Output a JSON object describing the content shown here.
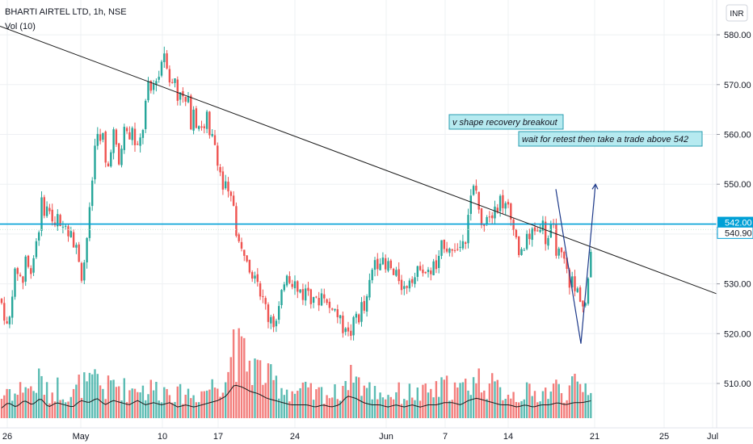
{
  "header": {
    "symbol_line": "BHARTI AIRTEL LTD, 1h, NSE",
    "volume_label": "Vol (10)",
    "currency": "INR"
  },
  "annotations": {
    "note1": "v shape recovery breakout",
    "note2": "wait for retest then take a trade above 542"
  },
  "chart_data": {
    "type": "candlestick",
    "symbol": "BHARTI AIRTEL LTD",
    "interval": "1h",
    "exchange": "NSE",
    "y_axis": {
      "ticks": [
        510,
        520,
        530,
        540,
        550,
        560,
        570,
        580
      ],
      "tick_labels": [
        "510.00",
        "520.00",
        "530.00",
        "540.00",
        "550.00",
        "560.00",
        "570.00",
        "580.00"
      ],
      "range": [
        502,
        586
      ]
    },
    "x_axis": {
      "tick_labels": [
        "26",
        "May",
        "10",
        "17",
        "24",
        "Jun",
        "7",
        "14",
        "21",
        "25",
        "Jul"
      ]
    },
    "price_labels": [
      {
        "value": 542.0,
        "label": "542.00"
      },
      {
        "value": 540.9,
        "label": "540.90"
      }
    ],
    "horizontal_level": 542,
    "trendline": {
      "start": {
        "x": "Apr 26",
        "y": 584
      },
      "end": {
        "x": "Jun 30",
        "y": 528
      }
    },
    "price_path": [
      [
        0,
        527
      ],
      [
        4,
        525
      ],
      [
        8,
        521
      ],
      [
        12,
        523
      ],
      [
        16,
        530
      ],
      [
        20,
        533
      ],
      [
        24,
        532
      ],
      [
        28,
        530
      ],
      [
        32,
        536
      ],
      [
        36,
        532
      ],
      [
        40,
        534
      ],
      [
        44,
        538
      ],
      [
        48,
        541
      ],
      [
        52,
        547
      ],
      [
        56,
        544
      ],
      [
        60,
        546
      ],
      [
        64,
        543
      ],
      [
        68,
        541
      ],
      [
        72,
        544
      ],
      [
        76,
        539
      ],
      [
        80,
        544
      ],
      [
        84,
        540
      ],
      [
        88,
        542
      ],
      [
        92,
        536
      ],
      [
        96,
        538
      ],
      [
        100,
        531
      ],
      [
        104,
        534
      ],
      [
        108,
        540
      ],
      [
        112,
        546
      ],
      [
        116,
        555
      ],
      [
        120,
        562
      ],
      [
        124,
        558
      ],
      [
        128,
        560
      ],
      [
        132,
        551
      ],
      [
        136,
        556
      ],
      [
        140,
        561
      ],
      [
        144,
        557
      ],
      [
        148,
        553
      ],
      [
        152,
        560
      ],
      [
        156,
        562
      ],
      [
        160,
        558
      ],
      [
        164,
        562
      ],
      [
        168,
        556
      ],
      [
        172,
        558
      ],
      [
        176,
        560
      ],
      [
        180,
        566
      ],
      [
        184,
        570
      ],
      [
        188,
        568
      ],
      [
        192,
        572
      ],
      [
        196,
        571
      ],
      [
        200,
        575
      ],
      [
        204,
        577
      ],
      [
        208,
        573
      ],
      [
        212,
        569
      ],
      [
        216,
        572
      ],
      [
        220,
        567
      ],
      [
        224,
        570
      ],
      [
        228,
        565
      ],
      [
        232,
        568
      ],
      [
        236,
        562
      ],
      [
        240,
        566
      ],
      [
        244,
        561
      ],
      [
        248,
        563
      ],
      [
        252,
        560
      ],
      [
        256,
        564
      ],
      [
        260,
        558
      ],
      [
        264,
        560
      ],
      [
        268,
        556
      ],
      [
        272,
        553
      ],
      [
        276,
        549
      ],
      [
        280,
        550
      ],
      [
        284,
        546
      ],
      [
        288,
        548
      ],
      [
        292,
        541
      ],
      [
        296,
        538
      ],
      [
        300,
        536
      ],
      [
        304,
        537
      ],
      [
        308,
        534
      ],
      [
        312,
        532
      ],
      [
        316,
        533
      ],
      [
        320,
        530
      ],
      [
        324,
        527
      ],
      [
        328,
        526
      ],
      [
        332,
        523
      ],
      [
        336,
        524
      ],
      [
        340,
        521
      ],
      [
        344,
        524
      ],
      [
        348,
        527
      ],
      [
        352,
        531
      ],
      [
        356,
        533
      ],
      [
        360,
        530
      ],
      [
        364,
        531
      ],
      [
        368,
        528
      ],
      [
        372,
        529
      ],
      [
        376,
        527
      ],
      [
        380,
        530
      ],
      [
        384,
        527
      ],
      [
        388,
        528
      ],
      [
        392,
        526
      ],
      [
        396,
        527
      ],
      [
        400,
        529
      ],
      [
        404,
        526
      ],
      [
        408,
        525
      ],
      [
        412,
        526
      ],
      [
        416,
        524
      ],
      [
        420,
        523
      ],
      [
        424,
        521
      ],
      [
        428,
        522
      ],
      [
        432,
        519
      ],
      [
        436,
        521
      ],
      [
        440,
        524
      ],
      [
        444,
        523
      ],
      [
        448,
        526
      ],
      [
        452,
        524
      ],
      [
        456,
        529
      ],
      [
        460,
        532
      ],
      [
        464,
        535
      ],
      [
        468,
        534
      ],
      [
        472,
        536
      ],
      [
        476,
        532
      ],
      [
        480,
        534
      ],
      [
        484,
        533
      ],
      [
        488,
        531
      ],
      [
        492,
        532
      ],
      [
        496,
        530
      ],
      [
        500,
        529
      ],
      [
        504,
        530
      ],
      [
        508,
        532
      ],
      [
        512,
        531
      ],
      [
        516,
        532
      ],
      [
        520,
        534
      ],
      [
        524,
        533
      ],
      [
        528,
        532
      ],
      [
        532,
        532
      ],
      [
        536,
        534
      ],
      [
        540,
        533
      ],
      [
        544,
        535
      ],
      [
        548,
        539
      ],
      [
        552,
        537
      ],
      [
        556,
        538
      ],
      [
        560,
        536
      ],
      [
        564,
        538
      ],
      [
        568,
        536
      ],
      [
        572,
        540
      ],
      [
        576,
        539
      ],
      [
        580,
        545
      ],
      [
        584,
        548
      ],
      [
        588,
        550
      ],
      [
        592,
        546
      ],
      [
        596,
        541
      ],
      [
        600,
        543
      ],
      [
        604,
        545
      ],
      [
        608,
        543
      ],
      [
        612,
        547
      ],
      [
        616,
        545
      ],
      [
        620,
        548
      ],
      [
        624,
        545
      ],
      [
        628,
        546
      ],
      [
        632,
        543
      ],
      [
        636,
        542
      ],
      [
        640,
        538
      ],
      [
        644,
        535
      ],
      [
        648,
        537
      ],
      [
        652,
        540
      ],
      [
        656,
        538
      ],
      [
        660,
        542
      ],
      [
        664,
        540
      ],
      [
        668,
        542
      ],
      [
        672,
        542
      ],
      [
        676,
        538
      ],
      [
        680,
        540
      ],
      [
        684,
        542
      ],
      [
        688,
        537
      ],
      [
        692,
        536
      ],
      [
        696,
        535
      ],
      [
        700,
        534
      ],
      [
        704,
        530
      ],
      [
        708,
        531
      ],
      [
        712,
        528
      ],
      [
        716,
        529
      ],
      [
        720,
        526
      ],
      [
        724,
        525
      ],
      [
        728,
        530
      ],
      [
        732,
        538
      ],
      [
        734,
        542
      ]
    ],
    "volume_path": [
      [
        0,
        0.2
      ],
      [
        10,
        0.35
      ],
      [
        20,
        0.25
      ],
      [
        30,
        0.4
      ],
      [
        40,
        0.3
      ],
      [
        50,
        0.45
      ],
      [
        60,
        0.25
      ],
      [
        70,
        0.35
      ],
      [
        80,
        0.3
      ],
      [
        90,
        0.25
      ],
      [
        100,
        0.4
      ],
      [
        110,
        0.35
      ],
      [
        120,
        0.45
      ],
      [
        130,
        0.3
      ],
      [
        140,
        0.4
      ],
      [
        150,
        0.35
      ],
      [
        160,
        0.3
      ],
      [
        170,
        0.4
      ],
      [
        180,
        0.3
      ],
      [
        190,
        0.35
      ],
      [
        200,
        0.3
      ],
      [
        210,
        0.35
      ],
      [
        220,
        0.25
      ],
      [
        230,
        0.3
      ],
      [
        240,
        0.25
      ],
      [
        250,
        0.3
      ],
      [
        260,
        0.35
      ],
      [
        270,
        0.4
      ],
      [
        280,
        0.5
      ],
      [
        290,
        0.75
      ],
      [
        300,
        0.7
      ],
      [
        310,
        0.6
      ],
      [
        320,
        0.55
      ],
      [
        330,
        0.45
      ],
      [
        340,
        0.4
      ],
      [
        350,
        0.35
      ],
      [
        360,
        0.3
      ],
      [
        370,
        0.3
      ],
      [
        380,
        0.3
      ],
      [
        390,
        0.25
      ],
      [
        400,
        0.3
      ],
      [
        410,
        0.25
      ],
      [
        420,
        0.3
      ],
      [
        430,
        0.5
      ],
      [
        440,
        0.45
      ],
      [
        450,
        0.35
      ],
      [
        460,
        0.3
      ],
      [
        470,
        0.3
      ],
      [
        480,
        0.25
      ],
      [
        490,
        0.3
      ],
      [
        500,
        0.25
      ],
      [
        510,
        0.3
      ],
      [
        520,
        0.25
      ],
      [
        530,
        0.3
      ],
      [
        540,
        0.3
      ],
      [
        550,
        0.35
      ],
      [
        560,
        0.35
      ],
      [
        570,
        0.3
      ],
      [
        580,
        0.4
      ],
      [
        590,
        0.45
      ],
      [
        600,
        0.4
      ],
      [
        610,
        0.35
      ],
      [
        620,
        0.3
      ],
      [
        630,
        0.3
      ],
      [
        640,
        0.25
      ],
      [
        650,
        0.3
      ],
      [
        660,
        0.25
      ],
      [
        670,
        0.3
      ],
      [
        680,
        0.3
      ],
      [
        690,
        0.35
      ],
      [
        700,
        0.3
      ],
      [
        710,
        0.35
      ],
      [
        720,
        0.35
      ],
      [
        734,
        0.4
      ]
    ],
    "volume_spikes": [
      {
        "x": 289,
        "v": 1.0
      },
      {
        "x": 433,
        "v": 0.6
      },
      {
        "x": 437,
        "v": 0.4
      }
    ]
  },
  "colors": {
    "up": "#26a69a",
    "down": "#ef5350",
    "grid": "#eef0f3",
    "level": "#00a0d6",
    "trend": "#1b1b1b",
    "vdraw": "#1e3a8a",
    "note_bg": "#b6eaf0",
    "note_border": "#2a9db0",
    "label_bg": "#00a0d6"
  }
}
